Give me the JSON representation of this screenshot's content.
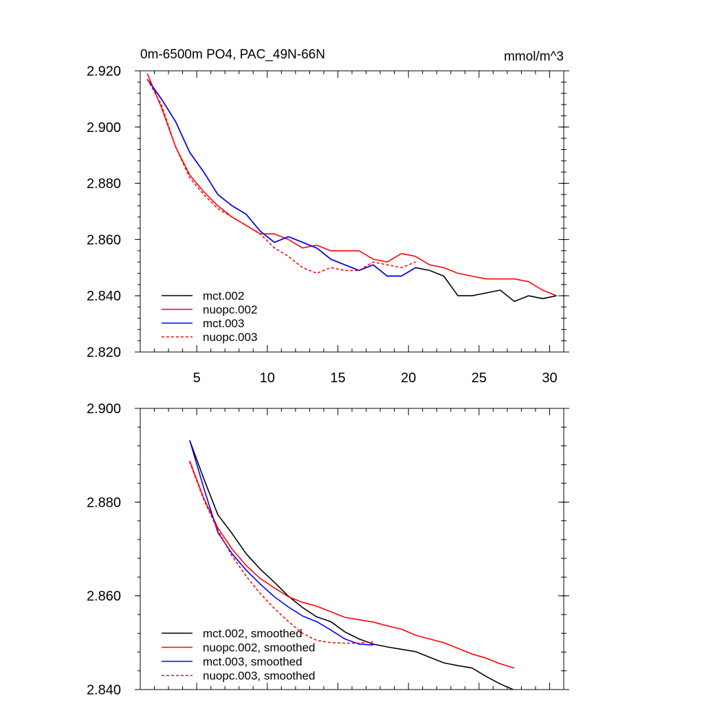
{
  "chart_data": [
    {
      "type": "line",
      "title": "0m-6500m PO4, PAC_49N-66N",
      "units": "mmol/m^3",
      "xlim": [
        1,
        31
      ],
      "ylim": [
        2.82,
        2.92
      ],
      "xticks": [
        5,
        10,
        15,
        20,
        25,
        30
      ],
      "xtick_labels": [
        "5",
        "10",
        "15",
        "20",
        "25",
        "30"
      ],
      "yticks": [
        2.82,
        2.84,
        2.86,
        2.88,
        2.9,
        2.92
      ],
      "ytick_labels": [
        "2.820",
        "2.840",
        "2.860",
        "2.880",
        "2.900",
        "2.920"
      ],
      "series": [
        {
          "name": "mct.002",
          "color": "#000000",
          "dash": "solid",
          "x": [
            1.5,
            2.5,
            3.5,
            4.5,
            5.5,
            6.5,
            7.5,
            8.5,
            9.5,
            10.5,
            11.5,
            12.5,
            13.5,
            14.5,
            15.5,
            16.5,
            17.5,
            18.5,
            19.5,
            20.5,
            21.5,
            22.5,
            23.5,
            24.5,
            25.5,
            26.5,
            27.5,
            28.5,
            29.5,
            30.5
          ],
          "y": [
            2.917,
            2.91,
            2.902,
            2.891,
            2.884,
            2.876,
            2.872,
            2.869,
            2.863,
            2.859,
            2.861,
            2.859,
            2.857,
            2.853,
            2.851,
            2.849,
            2.851,
            2.847,
            2.847,
            2.85,
            2.849,
            2.847,
            2.84,
            2.84,
            2.841,
            2.842,
            2.838,
            2.84,
            2.839,
            2.84
          ]
        },
        {
          "name": "nuopc.002",
          "color": "#ff0000",
          "dash": "solid",
          "x": [
            1.5,
            2.5,
            3.5,
            4.5,
            5.5,
            6.5,
            7.5,
            8.5,
            9.5,
            10.5,
            11.5,
            12.5,
            13.5,
            14.5,
            15.5,
            16.5,
            17.5,
            18.5,
            19.5,
            20.5,
            21.5,
            22.5,
            23.5,
            24.5,
            25.5,
            26.5,
            27.5,
            28.5,
            29.5,
            30.5
          ],
          "y": [
            2.919,
            2.907,
            2.893,
            2.883,
            2.877,
            2.872,
            2.868,
            2.865,
            2.862,
            2.862,
            2.86,
            2.857,
            2.858,
            2.856,
            2.856,
            2.856,
            2.853,
            2.852,
            2.855,
            2.854,
            2.851,
            2.85,
            2.848,
            2.847,
            2.846,
            2.846,
            2.846,
            2.845,
            2.842,
            2.84
          ]
        },
        {
          "name": "mct.003",
          "color": "#0000ff",
          "dash": "solid",
          "x": [
            1.5,
            2.5,
            3.5,
            4.5,
            5.5,
            6.5,
            7.5,
            8.5,
            9.5,
            10.5,
            11.5,
            12.5,
            13.5,
            14.5,
            15.5,
            16.5,
            17.5,
            18.5,
            19.5,
            20.5
          ],
          "y": [
            2.917,
            2.91,
            2.902,
            2.891,
            2.884,
            2.876,
            2.872,
            2.869,
            2.863,
            2.859,
            2.861,
            2.859,
            2.857,
            2.853,
            2.851,
            2.849,
            2.851,
            2.847,
            2.847,
            2.85
          ]
        },
        {
          "name": "nuopc.003",
          "color": "#ff0000",
          "dash": "dashed",
          "x": [
            1.5,
            2.5,
            3.5,
            4.5,
            5.5,
            6.5,
            7.5,
            8.5,
            9.5,
            10.5,
            11.5,
            12.5,
            13.5,
            14.5,
            15.5,
            16.5,
            17.5,
            18.5,
            19.5,
            20.5
          ],
          "y": [
            2.917,
            2.908,
            2.893,
            2.882,
            2.876,
            2.871,
            2.868,
            2.865,
            2.862,
            2.857,
            2.854,
            2.85,
            2.848,
            2.85,
            2.849,
            2.849,
            2.852,
            2.851,
            2.85,
            2.852
          ]
        }
      ]
    },
    {
      "type": "line",
      "title": "",
      "xlim": [
        1,
        31
      ],
      "ylim": [
        2.84,
        2.9
      ],
      "xticks": [
        5,
        10,
        15,
        20,
        25,
        30
      ],
      "yticks": [
        2.84,
        2.86,
        2.88,
        2.9
      ],
      "ytick_labels": [
        "2.840",
        "2.860",
        "2.880",
        "2.900"
      ],
      "series": [
        {
          "name": "mct.002, smoothed",
          "color": "#000000",
          "dash": "solid",
          "x": [
            4.5,
            5.5,
            6.5,
            7.5,
            8.5,
            9.5,
            10.5,
            11.5,
            12.5,
            13.5,
            14.5,
            15.5,
            16.5,
            17.5,
            18.5,
            19.5,
            20.5,
            21.5,
            22.5,
            23.5,
            24.5,
            25.5,
            26.5,
            27.5
          ],
          "y": [
            2.8932,
            2.885,
            2.8773,
            2.8733,
            2.869,
            2.8657,
            2.8629,
            2.8599,
            2.8575,
            2.8555,
            2.8545,
            2.8523,
            2.8508,
            2.8497,
            2.8491,
            2.8486,
            2.8481,
            2.8469,
            2.8457,
            2.8451,
            2.8446,
            2.8428,
            2.8412,
            2.8399
          ]
        },
        {
          "name": "nuopc.002, smoothed",
          "color": "#ff0000",
          "dash": "solid",
          "x": [
            4.5,
            5.5,
            6.5,
            7.5,
            8.5,
            9.5,
            10.5,
            11.5,
            12.5,
            13.5,
            14.5,
            15.5,
            16.5,
            17.5,
            18.5,
            19.5,
            20.5,
            21.5,
            22.5,
            23.5,
            24.5,
            25.5,
            26.5,
            27.5
          ],
          "y": [
            2.8888,
            2.8808,
            2.8745,
            2.87,
            2.8665,
            2.8637,
            2.8617,
            2.8598,
            2.8586,
            2.8578,
            2.8566,
            2.8554,
            2.8549,
            2.8544,
            2.8536,
            2.8529,
            2.8516,
            2.8508,
            2.85,
            2.8488,
            2.8476,
            2.8467,
            2.8455,
            2.8446
          ]
        },
        {
          "name": "mct.003, smoothed",
          "color": "#0000ff",
          "dash": "solid",
          "x": [
            4.5,
            5.5,
            6.5,
            7.5,
            8.5,
            9.5,
            10.5,
            11.5,
            12.5,
            13.5,
            14.5,
            15.5,
            16.5,
            17.5
          ],
          "y": [
            2.8932,
            2.883,
            2.8735,
            2.869,
            2.8655,
            2.8625,
            2.8598,
            2.8576,
            2.8557,
            2.8545,
            2.8527,
            2.8508,
            2.8497,
            2.8495
          ]
        },
        {
          "name": "nuopc.003, smoothed",
          "color": "#ff0000",
          "dash": "dashed",
          "x": [
            4.5,
            5.5,
            6.5,
            7.5,
            8.5,
            9.5,
            10.5,
            11.5,
            12.5,
            13.5,
            14.5,
            15.5,
            16.5,
            17.5
          ],
          "y": [
            2.8886,
            2.8805,
            2.874,
            2.8685,
            2.8642,
            2.8605,
            2.8573,
            2.8545,
            2.852,
            2.8505,
            2.85,
            2.8499,
            2.8499,
            2.8502
          ]
        }
      ]
    }
  ]
}
